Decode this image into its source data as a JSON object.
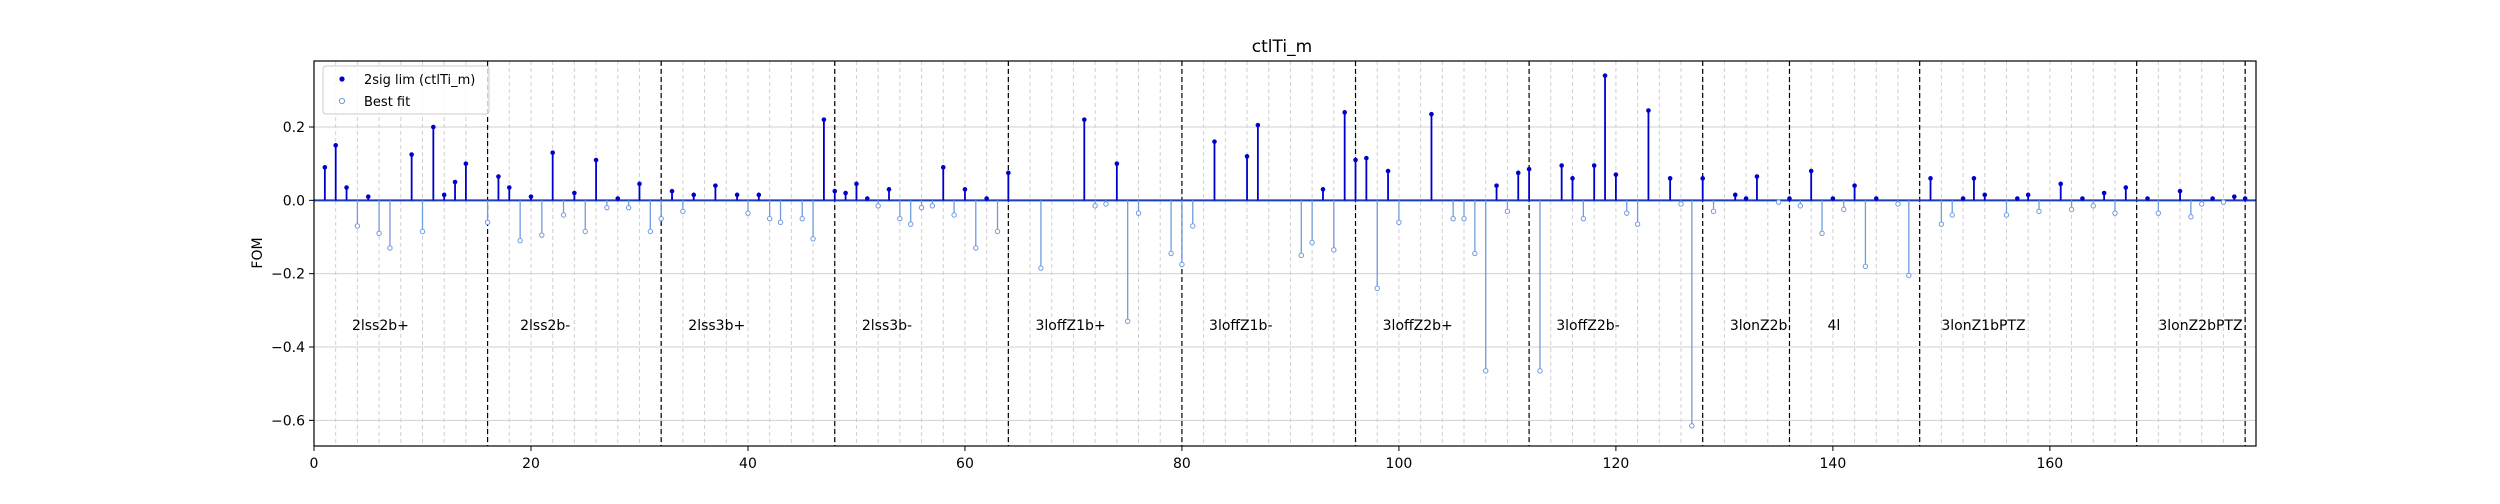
{
  "chart_data": {
    "type": "stem",
    "title": "ctlTi_m",
    "xlabel": "",
    "ylabel": "FOM",
    "xlim": [
      0,
      179
    ],
    "ylim": [
      -0.67,
      0.38
    ],
    "x_ticks": [
      0,
      20,
      40,
      60,
      80,
      100,
      120,
      140,
      160
    ],
    "y_ticks": [
      -0.6,
      -0.4,
      -0.2,
      0.0,
      0.2
    ],
    "y_tick_labels": [
      "−0.6",
      "−0.4",
      "−0.2",
      "0.0",
      "0.2"
    ],
    "grid": true,
    "legend_placement": "top-left",
    "colors": {
      "series_2sig": "#0000cc",
      "series_best": "#6f9be0",
      "separator": "#000000",
      "grid": "#d0d0d0"
    },
    "series": [
      {
        "name": "2sig lim (ctlTi_m)",
        "marker": "filled-dot",
        "x": [
          1,
          2,
          3,
          5,
          9,
          11,
          12,
          13,
          14,
          17,
          18,
          20,
          22,
          24,
          26,
          28,
          30,
          33,
          35,
          37,
          39,
          41,
          47,
          48,
          49,
          50,
          51,
          53,
          58,
          60,
          62,
          64,
          71,
          74,
          83,
          86,
          87,
          93,
          95,
          96,
          97,
          99,
          103,
          109,
          111,
          112,
          115,
          116,
          118,
          119,
          120,
          123,
          125,
          128,
          131,
          132,
          133,
          136,
          138,
          140,
          142,
          144,
          149,
          152,
          153,
          154,
          157,
          158,
          161,
          163,
          165,
          167,
          169,
          172,
          175,
          177,
          178
        ],
        "values": [
          0.09,
          0.15,
          0.035,
          0.01,
          0.125,
          0.2,
          0.015,
          0.05,
          0.1,
          0.065,
          0.035,
          0.01,
          0.13,
          0.02,
          0.11,
          0.005,
          0.045,
          0.025,
          0.015,
          0.04,
          0.015,
          0.015,
          0.22,
          0.025,
          0.02,
          0.045,
          0.005,
          0.03,
          0.09,
          0.03,
          0.005,
          0.075,
          0.22,
          0.1,
          0.16,
          0.12,
          0.205,
          0.03,
          0.24,
          0.11,
          0.115,
          0.08,
          0.235,
          0.04,
          0.075,
          0.085,
          0.095,
          0.06,
          0.095,
          0.34,
          0.07,
          0.245,
          0.06,
          0.06,
          0.015,
          0.005,
          0.065,
          0.005,
          0.08,
          0.005,
          0.04,
          0.005,
          0.06,
          0.005,
          0.06,
          0.015,
          0.005,
          0.015,
          0.045,
          0.005,
          0.02,
          0.035,
          0.005,
          0.025,
          0.005,
          0.01,
          0.005
        ]
      },
      {
        "name": "Best fit",
        "marker": "hollow-dot",
        "x": [
          4,
          6,
          7,
          10,
          16,
          19,
          21,
          23,
          25,
          27,
          29,
          31,
          32,
          34,
          40,
          42,
          43,
          45,
          46,
          52,
          54,
          55,
          56,
          57,
          59,
          61,
          63,
          67,
          72,
          73,
          75,
          76,
          79,
          80,
          81,
          91,
          92,
          94,
          98,
          100,
          105,
          106,
          107,
          108,
          110,
          113,
          117,
          121,
          122,
          126,
          127,
          129,
          135,
          137,
          139,
          141,
          143,
          146,
          147,
          150,
          151,
          156,
          159,
          162,
          164,
          166,
          170,
          173,
          174,
          176
        ],
        "values": [
          -0.07,
          -0.09,
          -0.13,
          -0.085,
          -0.06,
          -0.11,
          -0.095,
          -0.04,
          -0.085,
          -0.02,
          -0.02,
          -0.085,
          -0.05,
          -0.03,
          -0.035,
          -0.05,
          -0.06,
          -0.05,
          -0.105,
          -0.015,
          -0.05,
          -0.065,
          -0.02,
          -0.015,
          -0.04,
          -0.13,
          -0.085,
          -0.185,
          -0.015,
          -0.01,
          -0.33,
          -0.035,
          -0.145,
          -0.175,
          -0.07,
          -0.15,
          -0.115,
          -0.135,
          -0.24,
          -0.06,
          -0.05,
          -0.05,
          -0.145,
          -0.465,
          -0.03,
          -0.465,
          -0.05,
          -0.035,
          -0.065,
          -0.01,
          -0.615,
          -0.03,
          -0.005,
          -0.015,
          -0.09,
          -0.025,
          -0.18,
          -0.01,
          -0.205,
          -0.065,
          -0.04,
          -0.04,
          -0.03,
          -0.025,
          -0.015,
          -0.035,
          -0.035,
          -0.045,
          -0.01,
          -0.005
        ]
      }
    ],
    "separators": [
      16,
      32,
      48,
      64,
      80,
      96,
      112,
      128,
      136,
      148,
      168,
      178
    ],
    "region_labels": [
      {
        "text": "2lss2b+",
        "x": 3.5
      },
      {
        "text": "2lss2b-",
        "x": 19
      },
      {
        "text": "2lss3b+",
        "x": 34.5
      },
      {
        "text": "2lss3b-",
        "x": 50.5
      },
      {
        "text": "3loffZ1b+",
        "x": 66.5
      },
      {
        "text": "3loffZ1b-",
        "x": 82.5
      },
      {
        "text": "3loffZ2b+",
        "x": 98.5
      },
      {
        "text": "3loffZ2b-",
        "x": 114.5
      },
      {
        "text": "3lonZ2b",
        "x": 130.5
      },
      {
        "text": "4l",
        "x": 139.5
      },
      {
        "text": "3lonZ1bPTZ",
        "x": 150
      },
      {
        "text": "3lonZ2bPTZ",
        "x": 170
      }
    ],
    "region_label_y": -0.34
  }
}
